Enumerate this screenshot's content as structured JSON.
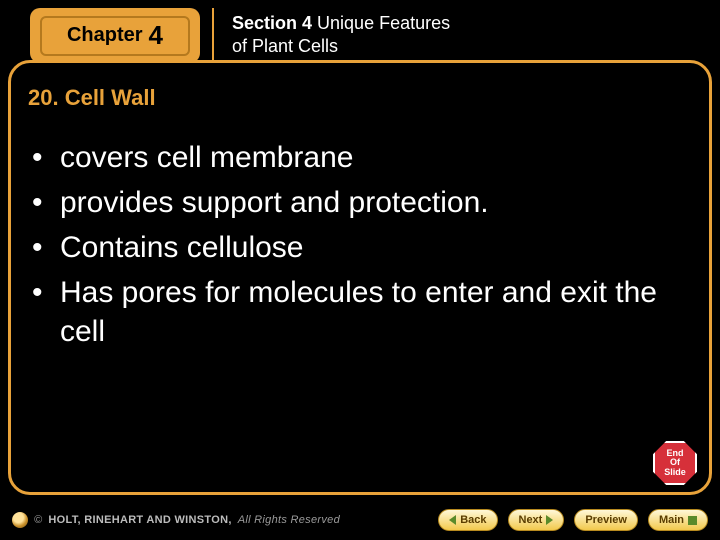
{
  "colors": {
    "accent": "#e8a23a",
    "background": "#000000",
    "text_light": "#ffffff",
    "stop_red": "#d6303a",
    "nav_green": "#5a8a2a"
  },
  "chapter": {
    "label": "Chapter",
    "number": "4"
  },
  "section": {
    "prefix": "Section 4",
    "title_rest": " Unique Features",
    "line2": "of Plant Cells"
  },
  "topic": {
    "heading": "20. Cell Wall"
  },
  "bullets": [
    "covers cell membrane",
    "provides support and protection.",
    "Contains cellulose",
    "Has pores for molecules to enter and exit the cell"
  ],
  "end_badge": {
    "line1": "End",
    "line2": "Of",
    "line3": "Slide"
  },
  "footer": {
    "copyright_company": "HOLT, RINEHART AND WINSTON,",
    "copyright_rest": " All Rights Reserved",
    "copyright_symbol": "©"
  },
  "nav": {
    "back": "Back",
    "next": "Next",
    "preview": "Preview",
    "main": "Main"
  }
}
